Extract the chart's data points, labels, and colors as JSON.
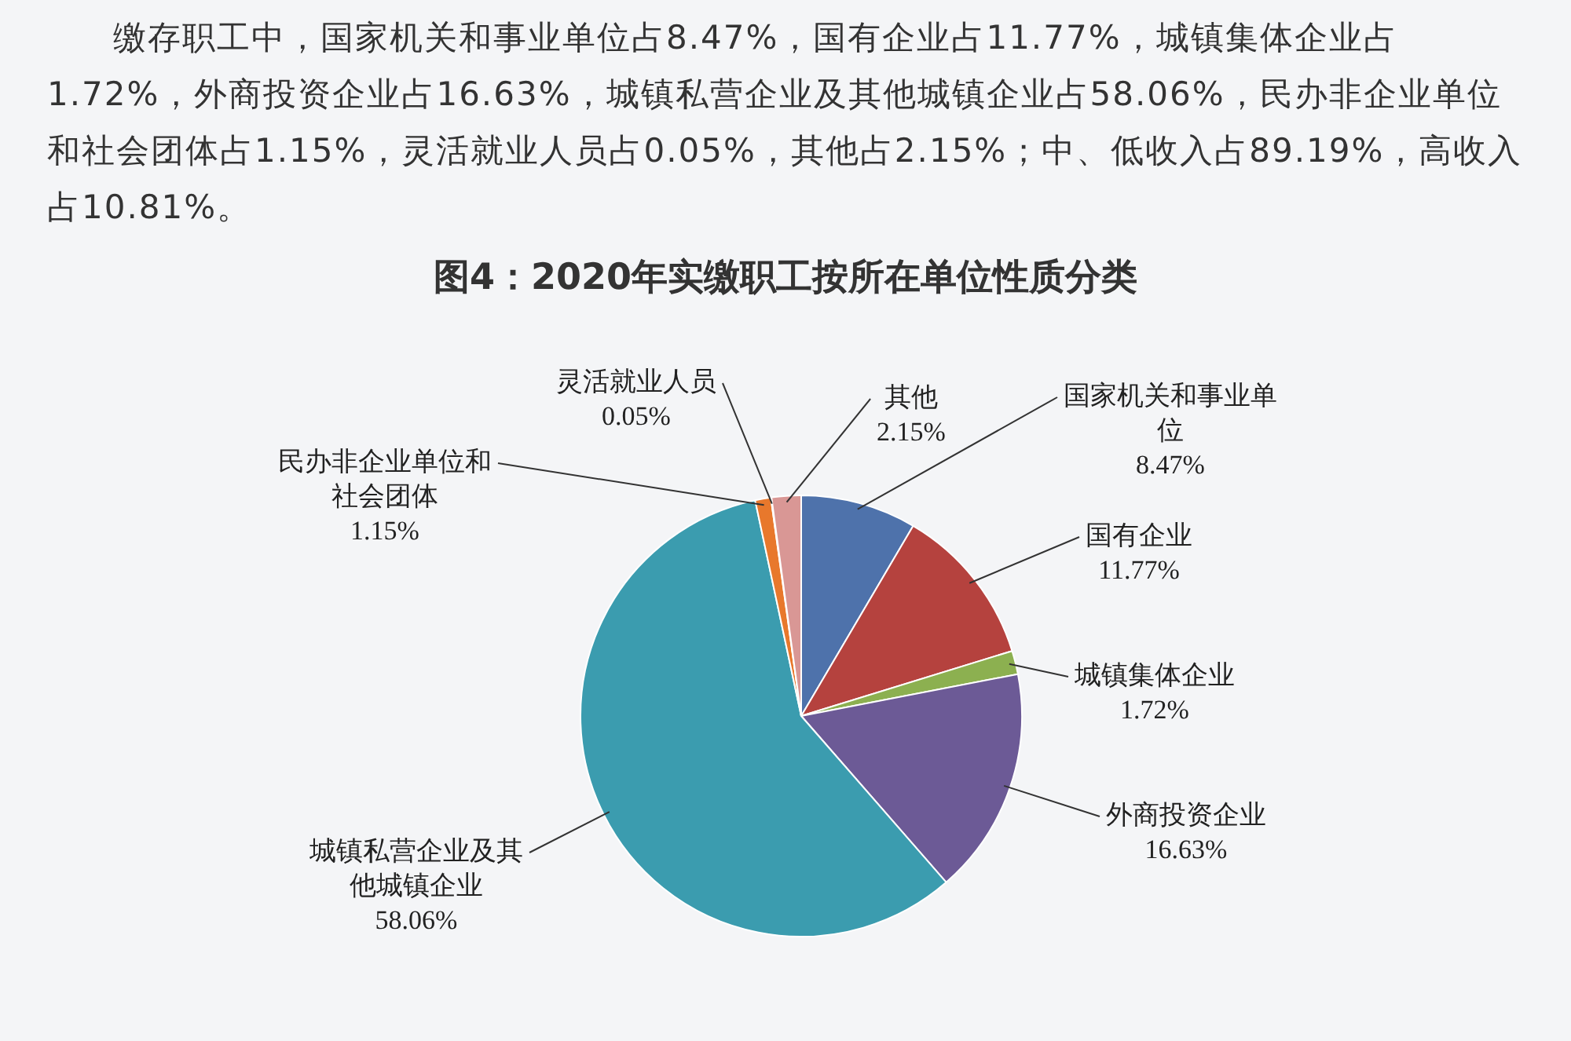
{
  "chart_data": {
    "type": "pie",
    "title": "图4：2020年实缴职工按所在单位性质分类",
    "annotations": [
      "缴存职工中，国家机关和事业单位占8.47%，国有企业占11.77%，城镇集体企业占1.72%，外商投资企业占16.63%，城镇私营企业及其他城镇企业占58.06%，民办非企业单位和社会团体占1.15%，灵活就业人员占0.05%，其他占2.15%；中、低收入占89.19%，高收入占10.81%。"
    ],
    "categories": [
      "国家机关和事业单位",
      "国有企业",
      "城镇集体企业",
      "外商投资企业",
      "城镇私营企业及其他城镇企业",
      "民办非企业单位和社会团体",
      "灵活就业人员",
      "其他"
    ],
    "values": [
      8.47,
      11.77,
      1.72,
      16.63,
      58.06,
      1.15,
      0.05,
      2.15
    ],
    "colors": [
      "#4e72ab",
      "#b5423e",
      "#8cb050",
      "#6c5a96",
      "#3b9caf",
      "#e8782c",
      "#6fa6d8",
      "#d99795"
    ],
    "value_labels": [
      "8.47%",
      "11.77%",
      "1.72%",
      "16.63%",
      "58.06%",
      "1.15%",
      "0.05%",
      "2.15%"
    ],
    "legend": false
  }
}
